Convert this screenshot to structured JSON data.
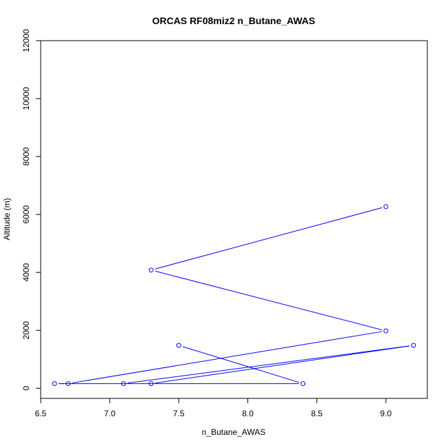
{
  "chart_data": {
    "type": "line",
    "title": "ORCAS RF08miz2 n_Butane_AWAS",
    "xlabel": "n_Butane_AWAS",
    "ylabel": "Altitude (m)",
    "xlim": [
      6.5,
      9.3
    ],
    "ylim": [
      -350,
      12000
    ],
    "x_ticks": [
      6.5,
      7.0,
      7.5,
      8.0,
      8.5,
      9.0
    ],
    "x_tick_labels": [
      "6.5",
      "7.0",
      "7.5",
      "8.0",
      "8.5",
      "9.0"
    ],
    "y_ticks": [
      0,
      2000,
      4000,
      6000,
      8000,
      10000,
      12000
    ],
    "y_tick_labels": [
      "0",
      "2000",
      "4000",
      "6000",
      "8000",
      "10000",
      "12000"
    ],
    "series": [
      {
        "color": "#0000ff",
        "marker": "open-circle",
        "points": [
          {
            "x": 9.0,
            "y": 6270
          },
          {
            "x": 7.3,
            "y": 4080
          },
          {
            "x": 9.0,
            "y": 1980
          },
          {
            "x": 6.7,
            "y": 160
          },
          {
            "x": 6.6,
            "y": 160
          },
          {
            "x": 8.4,
            "y": 160
          },
          {
            "x": 7.5,
            "y": 1480
          }
        ]
      },
      {
        "color": "#0000ff",
        "marker": "open-circle",
        "points": [
          {
            "x": 7.3,
            "y": 160
          },
          {
            "x": 9.2,
            "y": 1480
          },
          {
            "x": 7.1,
            "y": 160
          }
        ]
      }
    ],
    "grid": false,
    "legend": "none"
  }
}
